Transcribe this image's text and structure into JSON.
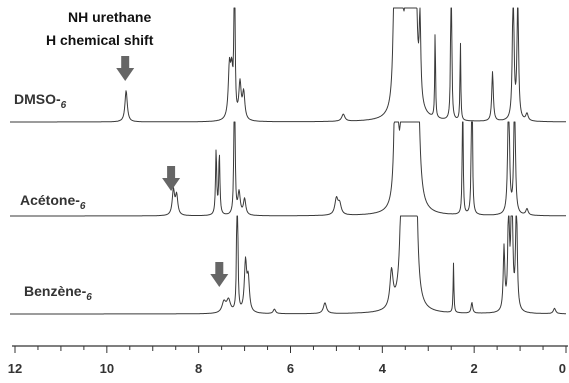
{
  "chart_data": {
    "type": "line",
    "title": "",
    "xlabel": "",
    "ylabel": "",
    "xlim": [
      12,
      0
    ],
    "x_reversed": true,
    "x_ticks": [
      "12",
      "10",
      "8",
      "6",
      "4",
      "2",
      "0"
    ],
    "grid": false,
    "annotation": {
      "line1": "NH urethane",
      "line2": "H chemical shift"
    },
    "series": [
      {
        "name": "DMSO-d6",
        "label_main": "DMSO-",
        "label_sub": "6",
        "arrow_ppm": 9.6,
        "peaks": [
          {
            "ppm": 9.58,
            "h": 0.35,
            "w": 0.03
          },
          {
            "ppm": 7.33,
            "h": 0.55,
            "w": 0.03
          },
          {
            "ppm": 7.28,
            "h": 0.48,
            "w": 0.03
          },
          {
            "ppm": 7.22,
            "h": 3.0,
            "w": 0.01
          },
          {
            "ppm": 7.1,
            "h": 0.4,
            "w": 0.03
          },
          {
            "ppm": 7.02,
            "h": 0.3,
            "w": 0.03
          },
          {
            "ppm": 4.85,
            "h": 0.08,
            "w": 0.04
          },
          {
            "ppm": 3.72,
            "h": 3.0,
            "w": 0.03
          },
          {
            "ppm": 3.6,
            "h": 3.0,
            "w": 0.03
          },
          {
            "ppm": 3.45,
            "h": 3.0,
            "w": 0.04
          },
          {
            "ppm": 3.3,
            "h": 3.0,
            "w": 0.04
          },
          {
            "ppm": 3.18,
            "h": 0.9,
            "w": 0.02
          },
          {
            "ppm": 2.85,
            "h": 1.0,
            "w": 0.01
          },
          {
            "ppm": 2.5,
            "h": 3.0,
            "w": 0.01
          },
          {
            "ppm": 2.3,
            "h": 0.9,
            "w": 0.01
          },
          {
            "ppm": 1.6,
            "h": 0.55,
            "w": 0.02
          },
          {
            "ppm": 1.15,
            "h": 1.6,
            "w": 0.02
          },
          {
            "ppm": 1.05,
            "h": 1.4,
            "w": 0.02
          },
          {
            "ppm": 0.85,
            "h": 0.08,
            "w": 0.03
          }
        ]
      },
      {
        "name": "Acétone-d6",
        "label_main": "Acétone-",
        "label_sub": "6",
        "arrow_ppm": 8.6,
        "peaks": [
          {
            "ppm": 8.55,
            "h": 0.28,
            "w": 0.03
          },
          {
            "ppm": 8.48,
            "h": 0.22,
            "w": 0.03
          },
          {
            "ppm": 7.62,
            "h": 0.72,
            "w": 0.015
          },
          {
            "ppm": 7.55,
            "h": 0.68,
            "w": 0.015
          },
          {
            "ppm": 7.22,
            "h": 3.0,
            "w": 0.01
          },
          {
            "ppm": 7.12,
            "h": 0.25,
            "w": 0.03
          },
          {
            "ppm": 7.0,
            "h": 0.18,
            "w": 0.03
          },
          {
            "ppm": 5.0,
            "h": 0.18,
            "w": 0.04
          },
          {
            "ppm": 4.93,
            "h": 0.12,
            "w": 0.04
          },
          {
            "ppm": 3.7,
            "h": 3.0,
            "w": 0.03
          },
          {
            "ppm": 3.55,
            "h": 3.0,
            "w": 0.03
          },
          {
            "ppm": 3.4,
            "h": 3.0,
            "w": 0.04
          },
          {
            "ppm": 3.25,
            "h": 3.0,
            "w": 0.04
          },
          {
            "ppm": 2.05,
            "h": 3.0,
            "w": 0.01
          },
          {
            "ppm": 2.25,
            "h": 1.8,
            "w": 0.01
          },
          {
            "ppm": 1.25,
            "h": 1.6,
            "w": 0.02
          },
          {
            "ppm": 1.12,
            "h": 1.4,
            "w": 0.02
          },
          {
            "ppm": 0.85,
            "h": 0.07,
            "w": 0.03
          }
        ]
      },
      {
        "name": "Benzène-d6",
        "label_main": "Benzène-",
        "label_sub": "6",
        "arrow_ppm": 7.55,
        "peaks": [
          {
            "ppm": 7.45,
            "h": 0.12,
            "w": 0.05
          },
          {
            "ppm": 7.35,
            "h": 0.14,
            "w": 0.05
          },
          {
            "ppm": 7.16,
            "h": 3.0,
            "w": 0.01
          },
          {
            "ppm": 6.98,
            "h": 0.55,
            "w": 0.03
          },
          {
            "ppm": 6.92,
            "h": 0.35,
            "w": 0.03
          },
          {
            "ppm": 6.35,
            "h": 0.05,
            "w": 0.03
          },
          {
            "ppm": 5.25,
            "h": 0.12,
            "w": 0.04
          },
          {
            "ppm": 3.8,
            "h": 0.4,
            "w": 0.04
          },
          {
            "ppm": 3.55,
            "h": 3.0,
            "w": 0.04
          },
          {
            "ppm": 3.4,
            "h": 3.0,
            "w": 0.04
          },
          {
            "ppm": 3.28,
            "h": 2.0,
            "w": 0.04
          },
          {
            "ppm": 2.45,
            "h": 0.55,
            "w": 0.01
          },
          {
            "ppm": 2.05,
            "h": 0.12,
            "w": 0.02
          },
          {
            "ppm": 1.35,
            "h": 0.7,
            "w": 0.02
          },
          {
            "ppm": 1.25,
            "h": 1.2,
            "w": 0.02
          },
          {
            "ppm": 1.18,
            "h": 1.7,
            "w": 0.02
          },
          {
            "ppm": 1.08,
            "h": 1.3,
            "w": 0.02
          },
          {
            "ppm": 0.25,
            "h": 0.06,
            "w": 0.03
          }
        ]
      }
    ]
  }
}
